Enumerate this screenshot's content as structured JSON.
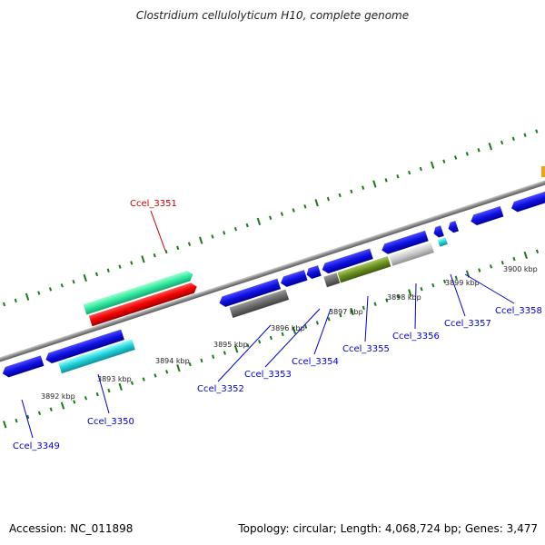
{
  "title": "Clostridium cellulolyticum H10, complete genome",
  "footer": {
    "accession": "Accession: NC_011898",
    "stats": "Topology: circular; Length: 4,068,724 bp; Genes: 3,477"
  },
  "colors": {
    "gene_default": "#1010e0",
    "gene_highlight": "#e00000",
    "label_default": "#0000cc",
    "label_highlight": "#cc0000",
    "tick": "#1a7a1a",
    "backbone": "#888888"
  },
  "kbp_labels": [
    "3892 kbp",
    "3893 kbp",
    "3894 kbp",
    "3895 kbp",
    "3896 kbp",
    "3897 kbp",
    "3898 kbp",
    "3899 kbp",
    "3900 kbp"
  ],
  "gene_labels": [
    {
      "id": "Ccel_3349",
      "text": "Ccel_3349",
      "highlight": false
    },
    {
      "id": "Ccel_3350",
      "text": "Ccel_3350",
      "highlight": false
    },
    {
      "id": "Ccel_3351",
      "text": "Ccel_3351",
      "highlight": true
    },
    {
      "id": "Ccel_3352",
      "text": "Ccel_3352",
      "highlight": false
    },
    {
      "id": "Ccel_3353",
      "text": "Ccel_3353",
      "highlight": false
    },
    {
      "id": "Ccel_3354",
      "text": "Ccel_3354",
      "highlight": false
    },
    {
      "id": "Ccel_3355",
      "text": "Ccel_3355",
      "highlight": false
    },
    {
      "id": "Ccel_3356",
      "text": "Ccel_3356",
      "highlight": false
    },
    {
      "id": "Ccel_3357",
      "text": "Ccel_3357",
      "highlight": false
    },
    {
      "id": "Ccel_3358",
      "text": "Ccel_3358",
      "highlight": false
    }
  ]
}
